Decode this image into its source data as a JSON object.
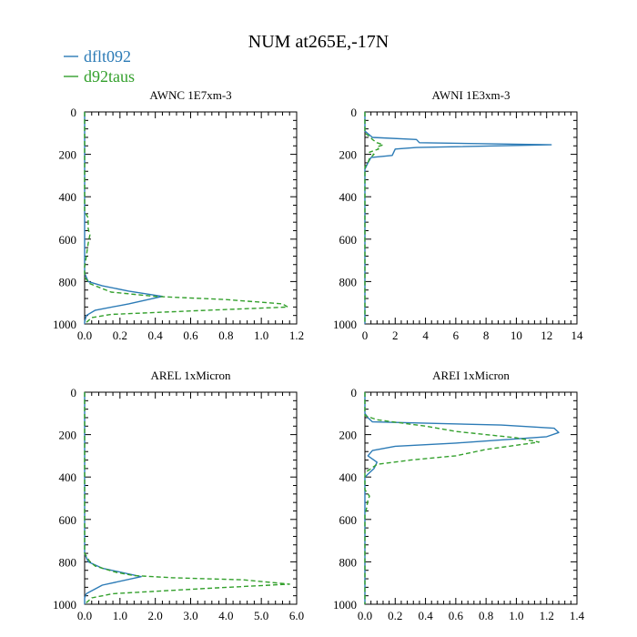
{
  "colors": {
    "series1": "#2c7bb6",
    "series2": "#33a02c",
    "axis": "#000000"
  },
  "chart_data": {
    "title": "NUM at265E,-17N",
    "legend": [
      {
        "name": "dflt092",
        "style": "solid",
        "color": "#2c7bb6"
      },
      {
        "name": "d92taus",
        "style": "dashed",
        "color": "#33a02c"
      }
    ],
    "panels": [
      {
        "type": "line",
        "title": "AWNC  1E7xm-3",
        "xlim": [
          0,
          1.2
        ],
        "xticks": [
          0,
          0.2,
          0.4,
          0.6,
          0.8,
          1.0,
          1.2
        ],
        "xticklabels": [
          "0.0",
          "0.2",
          "0.4",
          "0.6",
          "0.8",
          "1.0",
          "1.2"
        ],
        "ylim": [
          1000,
          0
        ],
        "yticks": [
          0,
          200,
          400,
          600,
          800,
          1000
        ],
        "yticklabels": [
          "0",
          "200",
          "400",
          "600",
          "800",
          "1000"
        ],
        "series": [
          {
            "name": "dflt092",
            "points": [
              [
                0,
                0
              ],
              [
                0,
                760
              ],
              [
                0.02,
                800
              ],
              [
                0.1,
                820
              ],
              [
                0.25,
                845
              ],
              [
                0.44,
                870
              ],
              [
                0.25,
                905
              ],
              [
                0.06,
                935
              ],
              [
                0.01,
                960
              ],
              [
                0,
                990
              ],
              [
                0,
                1000
              ]
            ]
          },
          {
            "name": "d92taus",
            "points": [
              [
                0,
                0
              ],
              [
                0,
                470
              ],
              [
                0.02,
                500
              ],
              [
                0.02,
                550
              ],
              [
                0.03,
                580
              ],
              [
                0.02,
                620
              ],
              [
                0.01,
                680
              ],
              [
                0,
                730
              ],
              [
                0,
                780
              ],
              [
                0.03,
                810
              ],
              [
                0.15,
                850
              ],
              [
                0.4,
                870
              ],
              [
                0.8,
                885
              ],
              [
                1.12,
                905
              ],
              [
                1.15,
                920
              ],
              [
                0.7,
                935
              ],
              [
                0.15,
                955
              ],
              [
                0.04,
                970
              ],
              [
                0,
                1000
              ]
            ]
          }
        ]
      },
      {
        "type": "line",
        "title": "AWNI  1E3xm-3",
        "xlim": [
          0,
          14
        ],
        "xticks": [
          0,
          2,
          4,
          6,
          8,
          10,
          12,
          14
        ],
        "xticklabels": [
          "0",
          "2",
          "4",
          "6",
          "8",
          "10",
          "12",
          "14"
        ],
        "ylim": [
          1000,
          0
        ],
        "yticks": [
          0,
          200,
          400,
          600,
          800,
          1000
        ],
        "yticklabels": [
          "0",
          "200",
          "400",
          "600",
          "800",
          "1000"
        ],
        "series": [
          {
            "name": "dflt092",
            "points": [
              [
                0,
                0
              ],
              [
                0,
                90
              ],
              [
                0.5,
                120
              ],
              [
                3.4,
                130
              ],
              [
                3.6,
                145
              ],
              [
                12.3,
                155
              ],
              [
                3.4,
                168
              ],
              [
                2.0,
                175
              ],
              [
                1.8,
                205
              ],
              [
                0.4,
                215
              ],
              [
                0.2,
                240
              ],
              [
                0,
                270
              ],
              [
                0,
                1000
              ]
            ]
          },
          {
            "name": "d92taus",
            "points": [
              [
                0,
                0
              ],
              [
                0,
                100
              ],
              [
                0.3,
                115
              ],
              [
                0.5,
                130
              ],
              [
                0.8,
                145
              ],
              [
                1.2,
                155
              ],
              [
                0.8,
                165
              ],
              [
                0.9,
                175
              ],
              [
                0.3,
                190
              ],
              [
                0.6,
                200
              ],
              [
                0.3,
                220
              ],
              [
                0.2,
                240
              ],
              [
                0,
                260
              ],
              [
                0,
                1000
              ]
            ]
          }
        ]
      },
      {
        "type": "line",
        "title": "AREL  1xMicron",
        "xlim": [
          0,
          6.0
        ],
        "xticks": [
          0,
          1,
          2,
          3,
          4,
          5,
          6
        ],
        "xticklabels": [
          "0.0",
          "1.0",
          "2.0",
          "3.0",
          "4.0",
          "5.0",
          "6.0"
        ],
        "ylim": [
          1000,
          0
        ],
        "yticks": [
          0,
          200,
          400,
          600,
          800,
          1000
        ],
        "yticklabels": [
          "0",
          "200",
          "400",
          "600",
          "800",
          "1000"
        ],
        "series": [
          {
            "name": "dflt092",
            "points": [
              [
                0,
                0
              ],
              [
                0,
                760
              ],
              [
                0.1,
                800
              ],
              [
                0.5,
                830
              ],
              [
                1.6,
                870
              ],
              [
                0.5,
                910
              ],
              [
                0.05,
                950
              ],
              [
                0,
                970
              ],
              [
                0,
                1000
              ]
            ]
          },
          {
            "name": "d92taus",
            "points": [
              [
                0,
                0
              ],
              [
                0,
                760
              ],
              [
                0.15,
                800
              ],
              [
                0.3,
                820
              ],
              [
                0.9,
                850
              ],
              [
                1.4,
                865
              ],
              [
                2.5,
                875
              ],
              [
                4.5,
                885
              ],
              [
                5.8,
                905
              ],
              [
                3.5,
                925
              ],
              [
                0.8,
                950
              ],
              [
                0.2,
                970
              ],
              [
                0,
                1000
              ]
            ]
          }
        ]
      },
      {
        "type": "line",
        "title": "AREI  1xMicron",
        "xlim": [
          0,
          1.4
        ],
        "xticks": [
          0,
          0.2,
          0.4,
          0.6,
          0.8,
          1.0,
          1.2,
          1.4
        ],
        "xticklabels": [
          "0.0",
          "0.2",
          "0.4",
          "0.6",
          "0.8",
          "1.0",
          "1.2",
          "1.4"
        ],
        "ylim": [
          1000,
          0
        ],
        "yticks": [
          0,
          200,
          400,
          600,
          800,
          1000
        ],
        "yticklabels": [
          "0",
          "200",
          "400",
          "600",
          "800",
          "1000"
        ],
        "series": [
          {
            "name": "dflt092",
            "points": [
              [
                0,
                0
              ],
              [
                0,
                100
              ],
              [
                0.02,
                120
              ],
              [
                0.05,
                140
              ],
              [
                0.9,
                155
              ],
              [
                1.25,
                170
              ],
              [
                1.28,
                190
              ],
              [
                1.2,
                210
              ],
              [
                0.6,
                240
              ],
              [
                0.2,
                255
              ],
              [
                0.05,
                275
              ],
              [
                0.02,
                300
              ],
              [
                0.08,
                330
              ],
              [
                0.06,
                360
              ],
              [
                0.03,
                380
              ],
              [
                0,
                400
              ],
              [
                0,
                1000
              ]
            ]
          },
          {
            "name": "d92taus",
            "points": [
              [
                0,
                0
              ],
              [
                0,
                110
              ],
              [
                0.08,
                130
              ],
              [
                0.4,
                160
              ],
              [
                0.6,
                185
              ],
              [
                1.0,
                215
              ],
              [
                1.15,
                235
              ],
              [
                0.8,
                270
              ],
              [
                0.6,
                300
              ],
              [
                0.3,
                320
              ],
              [
                0.08,
                340
              ],
              [
                0.04,
                360
              ],
              [
                0,
                380
              ],
              [
                0,
                460
              ],
              [
                0.03,
                490
              ],
              [
                0.02,
                510
              ],
              [
                0.01,
                550
              ],
              [
                0,
                580
              ],
              [
                0,
                1000
              ]
            ]
          }
        ]
      }
    ]
  }
}
